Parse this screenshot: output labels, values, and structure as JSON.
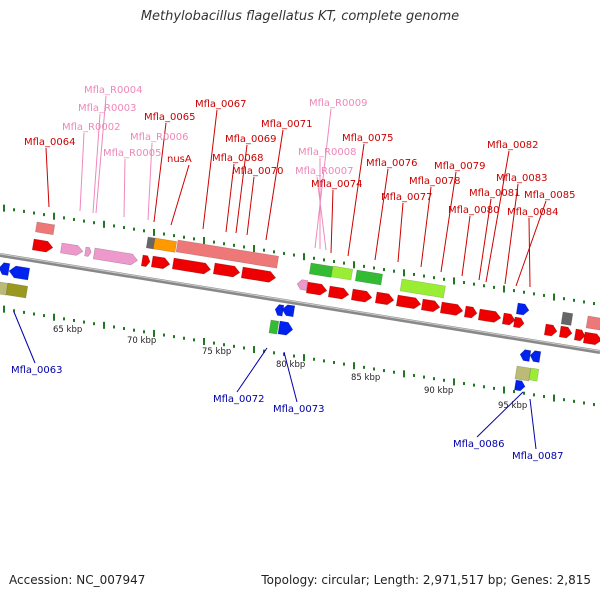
{
  "title": "Methylobacillus flagellatus KT, complete genome",
  "footer": {
    "accession": "Accession: NC_007947",
    "summary": "Topology: circular; Length: 2,971,517 bp; Genes: 2,815"
  },
  "colors": {
    "gene_label": "#cc0000",
    "rna_label": "#ee88bb",
    "reverse_label": "#0000aa",
    "forward_gene": "#ee0000",
    "reverse_gene": "#0022ee",
    "rna_gene": "#ee99cc",
    "cog_green": "#33bb33",
    "cog_light_green": "#99ee33",
    "cog_salmon": "#ee7777",
    "cog_orange": "#ff9900",
    "cog_olive": "#999922",
    "cog_khaki": "#bbbb77",
    "cog_gray": "#666666",
    "backbone": "#888888",
    "tick": "#227722"
  },
  "scale_labels": [
    "65 kbp",
    "70 kbp",
    "75 kbp",
    "80 kbp",
    "85 kbp",
    "90 kbp",
    "95 kbp"
  ],
  "top_labels": [
    {
      "text": "Mfla_0064",
      "kind": "gene"
    },
    {
      "text": "Mfla_R0002",
      "kind": "rna"
    },
    {
      "text": "Mfla_R0003",
      "kind": "rna"
    },
    {
      "text": "Mfla_R0004",
      "kind": "rna"
    },
    {
      "text": "Mfla_R0005",
      "kind": "rna"
    },
    {
      "text": "Mfla_R0006",
      "kind": "rna"
    },
    {
      "text": "Mfla_0065",
      "kind": "gene"
    },
    {
      "text": "nusA",
      "kind": "gene"
    },
    {
      "text": "Mfla_0067",
      "kind": "gene"
    },
    {
      "text": "Mfla_0068",
      "kind": "gene"
    },
    {
      "text": "Mfla_0069",
      "kind": "gene"
    },
    {
      "text": "Mfla_0070",
      "kind": "gene"
    },
    {
      "text": "Mfla_0071",
      "kind": "gene"
    },
    {
      "text": "Mfla_R0009",
      "kind": "rna"
    },
    {
      "text": "Mfla_R0008",
      "kind": "rna"
    },
    {
      "text": "Mfla_R0007",
      "kind": "rna"
    },
    {
      "text": "Mfla_0074",
      "kind": "gene"
    },
    {
      "text": "Mfla_0075",
      "kind": "gene"
    },
    {
      "text": "Mfla_0076",
      "kind": "gene"
    },
    {
      "text": "Mfla_0077",
      "kind": "gene"
    },
    {
      "text": "Mfla_0078",
      "kind": "gene"
    },
    {
      "text": "Mfla_0079",
      "kind": "gene"
    },
    {
      "text": "Mfla_0080",
      "kind": "gene"
    },
    {
      "text": "Mfla_0081",
      "kind": "gene"
    },
    {
      "text": "Mfla_0082",
      "kind": "gene"
    },
    {
      "text": "Mfla_0083",
      "kind": "gene"
    },
    {
      "text": "Mfla_0084",
      "kind": "gene"
    },
    {
      "text": "Mfla_0085",
      "kind": "gene"
    }
  ],
  "bottom_labels": [
    {
      "text": "Mfla_0063"
    },
    {
      "text": "Mfla_0072"
    },
    {
      "text": "Mfla_0073"
    },
    {
      "text": "Mfla_0086"
    },
    {
      "text": "Mfla_0087"
    }
  ]
}
